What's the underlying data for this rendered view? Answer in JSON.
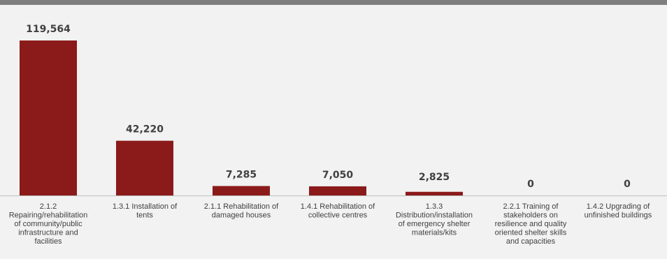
{
  "chart_data": {
    "type": "bar",
    "categories": [
      [
        "2.1.2",
        "Repairing/rehabilitation",
        "of community/public",
        "infrastructure and",
        "facilities"
      ],
      [
        "1.3.1 Installation of",
        "tents"
      ],
      [
        "2.1.1 Rehabilitation of",
        "damaged houses"
      ],
      [
        "1.4.1 Rehabilitation of",
        "collective centres"
      ],
      [
        "1.3.3",
        "Distribution/installation",
        "of emergency shelter",
        "materials/kits"
      ],
      [
        "2.2.1 Training of",
        "stakeholders on",
        "resilience and quality",
        "oriented shelter skills",
        "and capacities"
      ],
      [
        "1.4.2 Upgrading of",
        "unfinished buildings"
      ]
    ],
    "values": [
      119564,
      42220,
      7285,
      7050,
      2825,
      0,
      0
    ],
    "value_labels": [
      "119,564",
      "42,220",
      "7,285",
      "7,050",
      "2,825",
      "0",
      "0"
    ],
    "ylim": [
      0,
      119564
    ],
    "bar_color": "#8b1a1a",
    "axis_color": "#bfbfbf",
    "grid": false,
    "legend": "none"
  }
}
